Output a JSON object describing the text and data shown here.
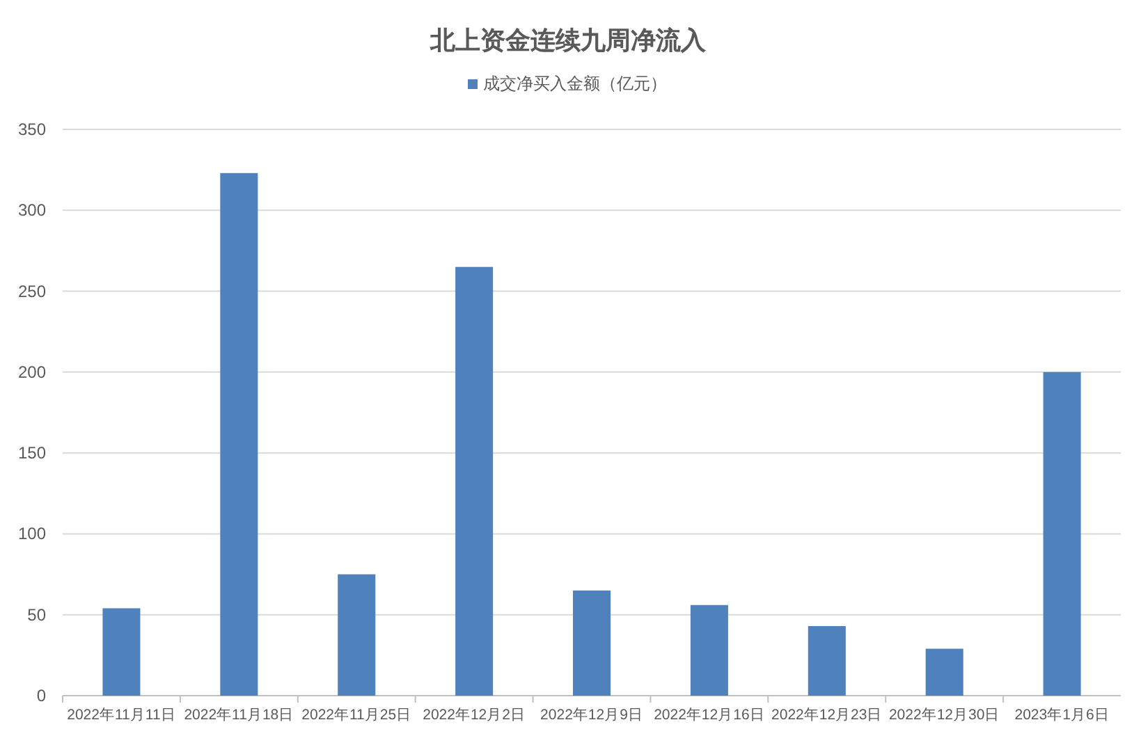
{
  "chart_data": {
    "type": "bar",
    "title": "北上资金连续九周净流入",
    "categories": [
      "2022年11月11日",
      "2022年11月18日",
      "2022年11月25日",
      "2022年12月2日",
      "2022年12月9日",
      "2022年12月16日",
      "2022年12月23日",
      "2022年12月30日",
      "2023年1月6日"
    ],
    "series": [
      {
        "name": "成交净买入金额（亿元）",
        "color": "#4f81bd",
        "values": [
          54,
          323,
          75,
          265,
          65,
          56,
          43,
          29,
          200
        ]
      }
    ],
    "ylim": [
      0,
      350
    ],
    "yticks": [
      0,
      50,
      100,
      150,
      200,
      250,
      300,
      350
    ],
    "grid": "y",
    "legend": "top"
  }
}
